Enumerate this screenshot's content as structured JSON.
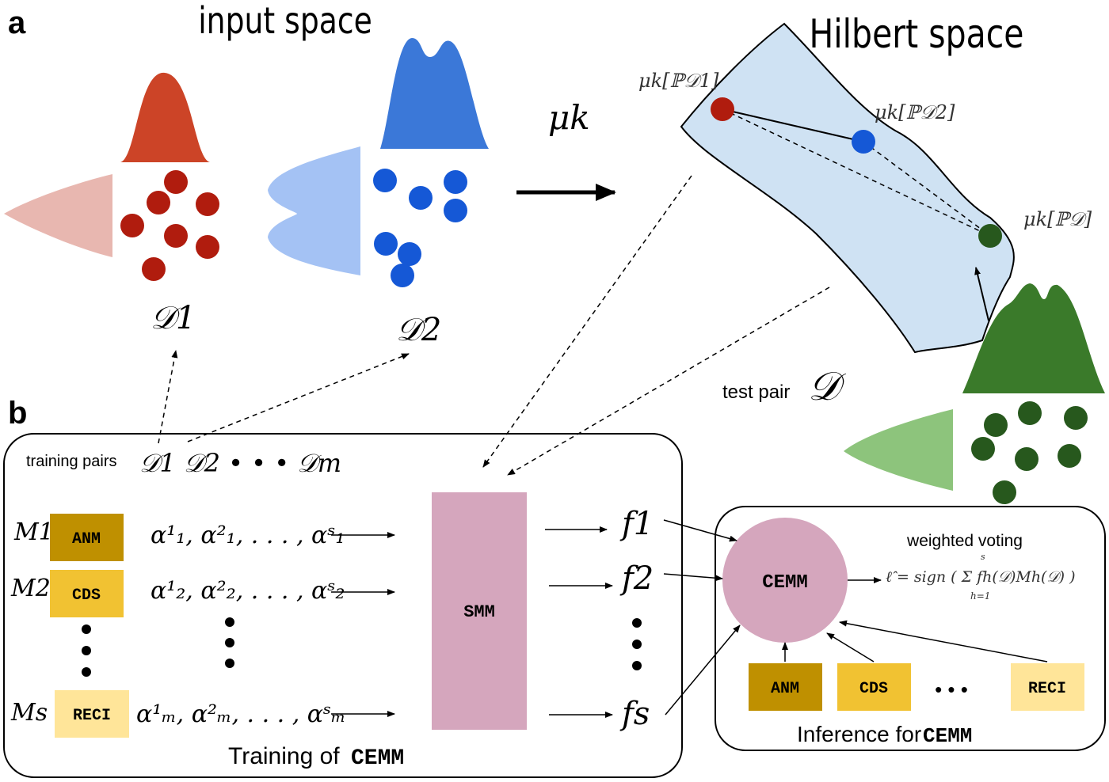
{
  "panels": {
    "a": "a",
    "b": "b",
    "input_space": "input space",
    "hilbert_space": "Hilbert space"
  },
  "input": {
    "d1_label": "𝒟1",
    "d2_label": "𝒟2",
    "map_label": "μk"
  },
  "hilbert": {
    "mu_d1": "μk[ℙ𝒟1]",
    "mu_d2": "μk[ℙ𝒟2]",
    "mu_d": "μk[ℙ𝒟]"
  },
  "test": {
    "label": "test pair",
    "symbol": "𝒟"
  },
  "training": {
    "pairs_label": "training pairs",
    "pairs_seq": "𝒟1 𝒟2 • • • 𝒟m",
    "title_prefix": "Training of",
    "title_name": "CEMM",
    "models": [
      {
        "symbol": "M1",
        "name": "ANM",
        "alphas": "α¹₁, α²₁, . . . , αˢ₁",
        "f": "f1"
      },
      {
        "symbol": "M2",
        "name": "CDS",
        "alphas": "α¹₂, α²₂, . . . , αˢ₂",
        "f": "f2"
      },
      {
        "symbol": "Ms",
        "name": "RECI",
        "alphas": "α¹ₘ, α²ₘ, . . . , αˢₘ",
        "f": "fs"
      }
    ],
    "smm_label": "SMM"
  },
  "inference": {
    "title_prefix": "Inference for",
    "title_name": "CEMM",
    "cemm_label": "CEMM",
    "voting_label": "weighted voting",
    "formula": "ℓ̂ = sign ( Σ fh(𝒟)Mh(𝒟) )",
    "formula_sup": "s",
    "formula_sub": "h=1",
    "models": [
      "ANM",
      "CDS",
      "RECI"
    ],
    "ellipsis": "• • •"
  },
  "colors": {
    "red_dark": "#b01c0e",
    "red_peak": "#cc4427",
    "red_soft": "#e8b7b0",
    "blue_dark": "#1558d6",
    "blue_peak": "#3b78d8",
    "blue_soft": "#a4c2f4",
    "green_dark": "#27581d",
    "green_peak": "#3a7a2a",
    "green_soft": "#8dc47c",
    "hilbert_fill": "#cfe2f3",
    "smm": "#d5a6bd",
    "anm": "#bf9000",
    "cds": "#f1c232",
    "reci": "#ffe599"
  }
}
